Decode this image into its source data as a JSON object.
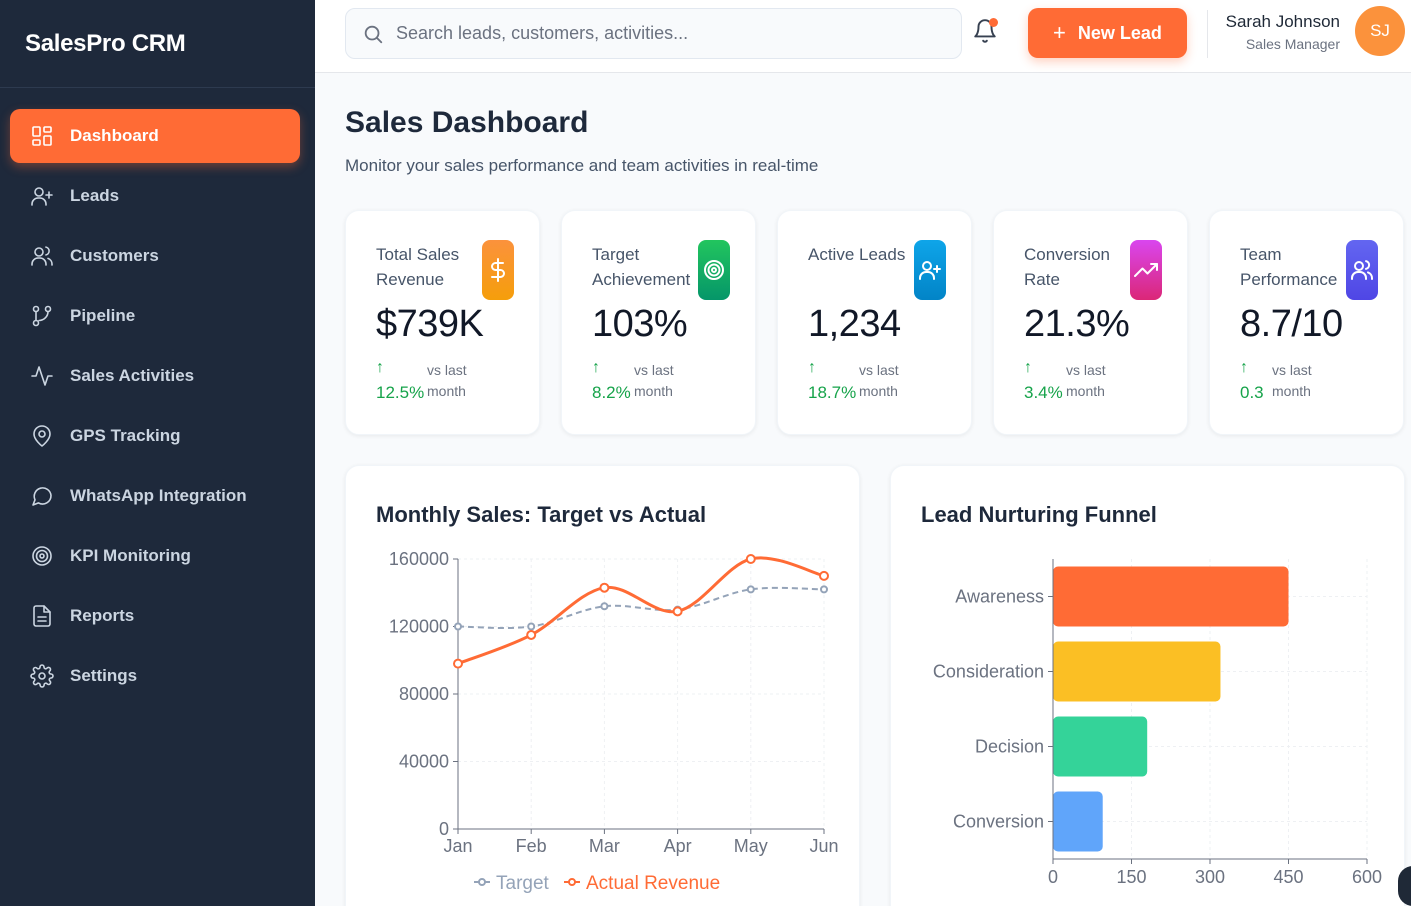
{
  "app": {
    "name": "SalesPro CRM"
  },
  "sidebar": {
    "items": [
      {
        "label": "Dashboard",
        "icon": "dashboard-grid-icon",
        "active": true
      },
      {
        "label": "Leads",
        "icon": "user-plus-icon"
      },
      {
        "label": "Customers",
        "icon": "users-icon"
      },
      {
        "label": "Pipeline",
        "icon": "git-branch-icon"
      },
      {
        "label": "Sales Activities",
        "icon": "activity-icon"
      },
      {
        "label": "GPS Tracking",
        "icon": "map-pin-icon"
      },
      {
        "label": "WhatsApp Integration",
        "icon": "chat-bubble-icon"
      },
      {
        "label": "KPI Monitoring",
        "icon": "target-icon"
      },
      {
        "label": "Reports",
        "icon": "document-icon"
      },
      {
        "label": "Settings",
        "icon": "gear-icon"
      }
    ]
  },
  "header": {
    "search_placeholder": "Search leads, customers, activities...",
    "new_lead_label": "New Lead",
    "user_name": "Sarah Johnson",
    "user_role": "Sales Manager",
    "user_initials": "SJ"
  },
  "page": {
    "title": "Sales Dashboard",
    "subtitle": "Monitor your sales performance and team activities in real-time"
  },
  "kpis": [
    {
      "label": "Total Sales Revenue",
      "value": "$739K",
      "change": "12.5%",
      "compare": "vs last month",
      "icon": "dollar-icon",
      "color": "#f97316"
    },
    {
      "label": "Target Achievement",
      "value": "103%",
      "change": "8.2%",
      "compare": "vs last month",
      "icon": "target-icon",
      "color": "#16a34a"
    },
    {
      "label": "Active Leads",
      "value": "1,234",
      "change": "18.7%",
      "compare": "vs last month",
      "icon": "user-plus-icon",
      "color": "#0284c7"
    },
    {
      "label": "Conversion Rate",
      "value": "21.3%",
      "change": "3.4%",
      "compare": "vs last month",
      "icon": "trending-up-icon",
      "color": "#c026d3"
    },
    {
      "label": "Team Performance",
      "value": "8.7/10",
      "change": "0.3",
      "compare": "vs last month",
      "icon": "users-icon",
      "color": "#4f46e5"
    }
  ],
  "chart_data": [
    {
      "type": "line",
      "title": "Monthly Sales: Target vs Actual",
      "x": [
        "Jan",
        "Feb",
        "Mar",
        "Apr",
        "May",
        "Jun"
      ],
      "ylim": [
        0,
        160000
      ],
      "yticks": [
        "0",
        "40000",
        "80000",
        "120000",
        "160000"
      ],
      "series": [
        {
          "name": "Target",
          "values": [
            120000,
            120000,
            132000,
            130000,
            142000,
            142000
          ],
          "color": "#94a3b8",
          "style": "dashed"
        },
        {
          "name": "Actual Revenue",
          "values": [
            98000,
            115000,
            143000,
            129000,
            160000,
            150000
          ],
          "color": "#ff6b35",
          "style": "solid"
        }
      ],
      "legend": "bottom",
      "grid": true
    },
    {
      "type": "bar",
      "orientation": "horizontal",
      "title": "Lead Nurturing Funnel",
      "categories": [
        "Awareness",
        "Consideration",
        "Decision",
        "Conversion"
      ],
      "values": [
        450,
        320,
        180,
        95
      ],
      "colors": [
        "#ff6b35",
        "#fbbf24",
        "#34d399",
        "#60a5fa"
      ],
      "xlim": [
        0,
        600
      ],
      "xticks": [
        "0",
        "150",
        "300",
        "450",
        "600"
      ],
      "grid": true
    }
  ]
}
